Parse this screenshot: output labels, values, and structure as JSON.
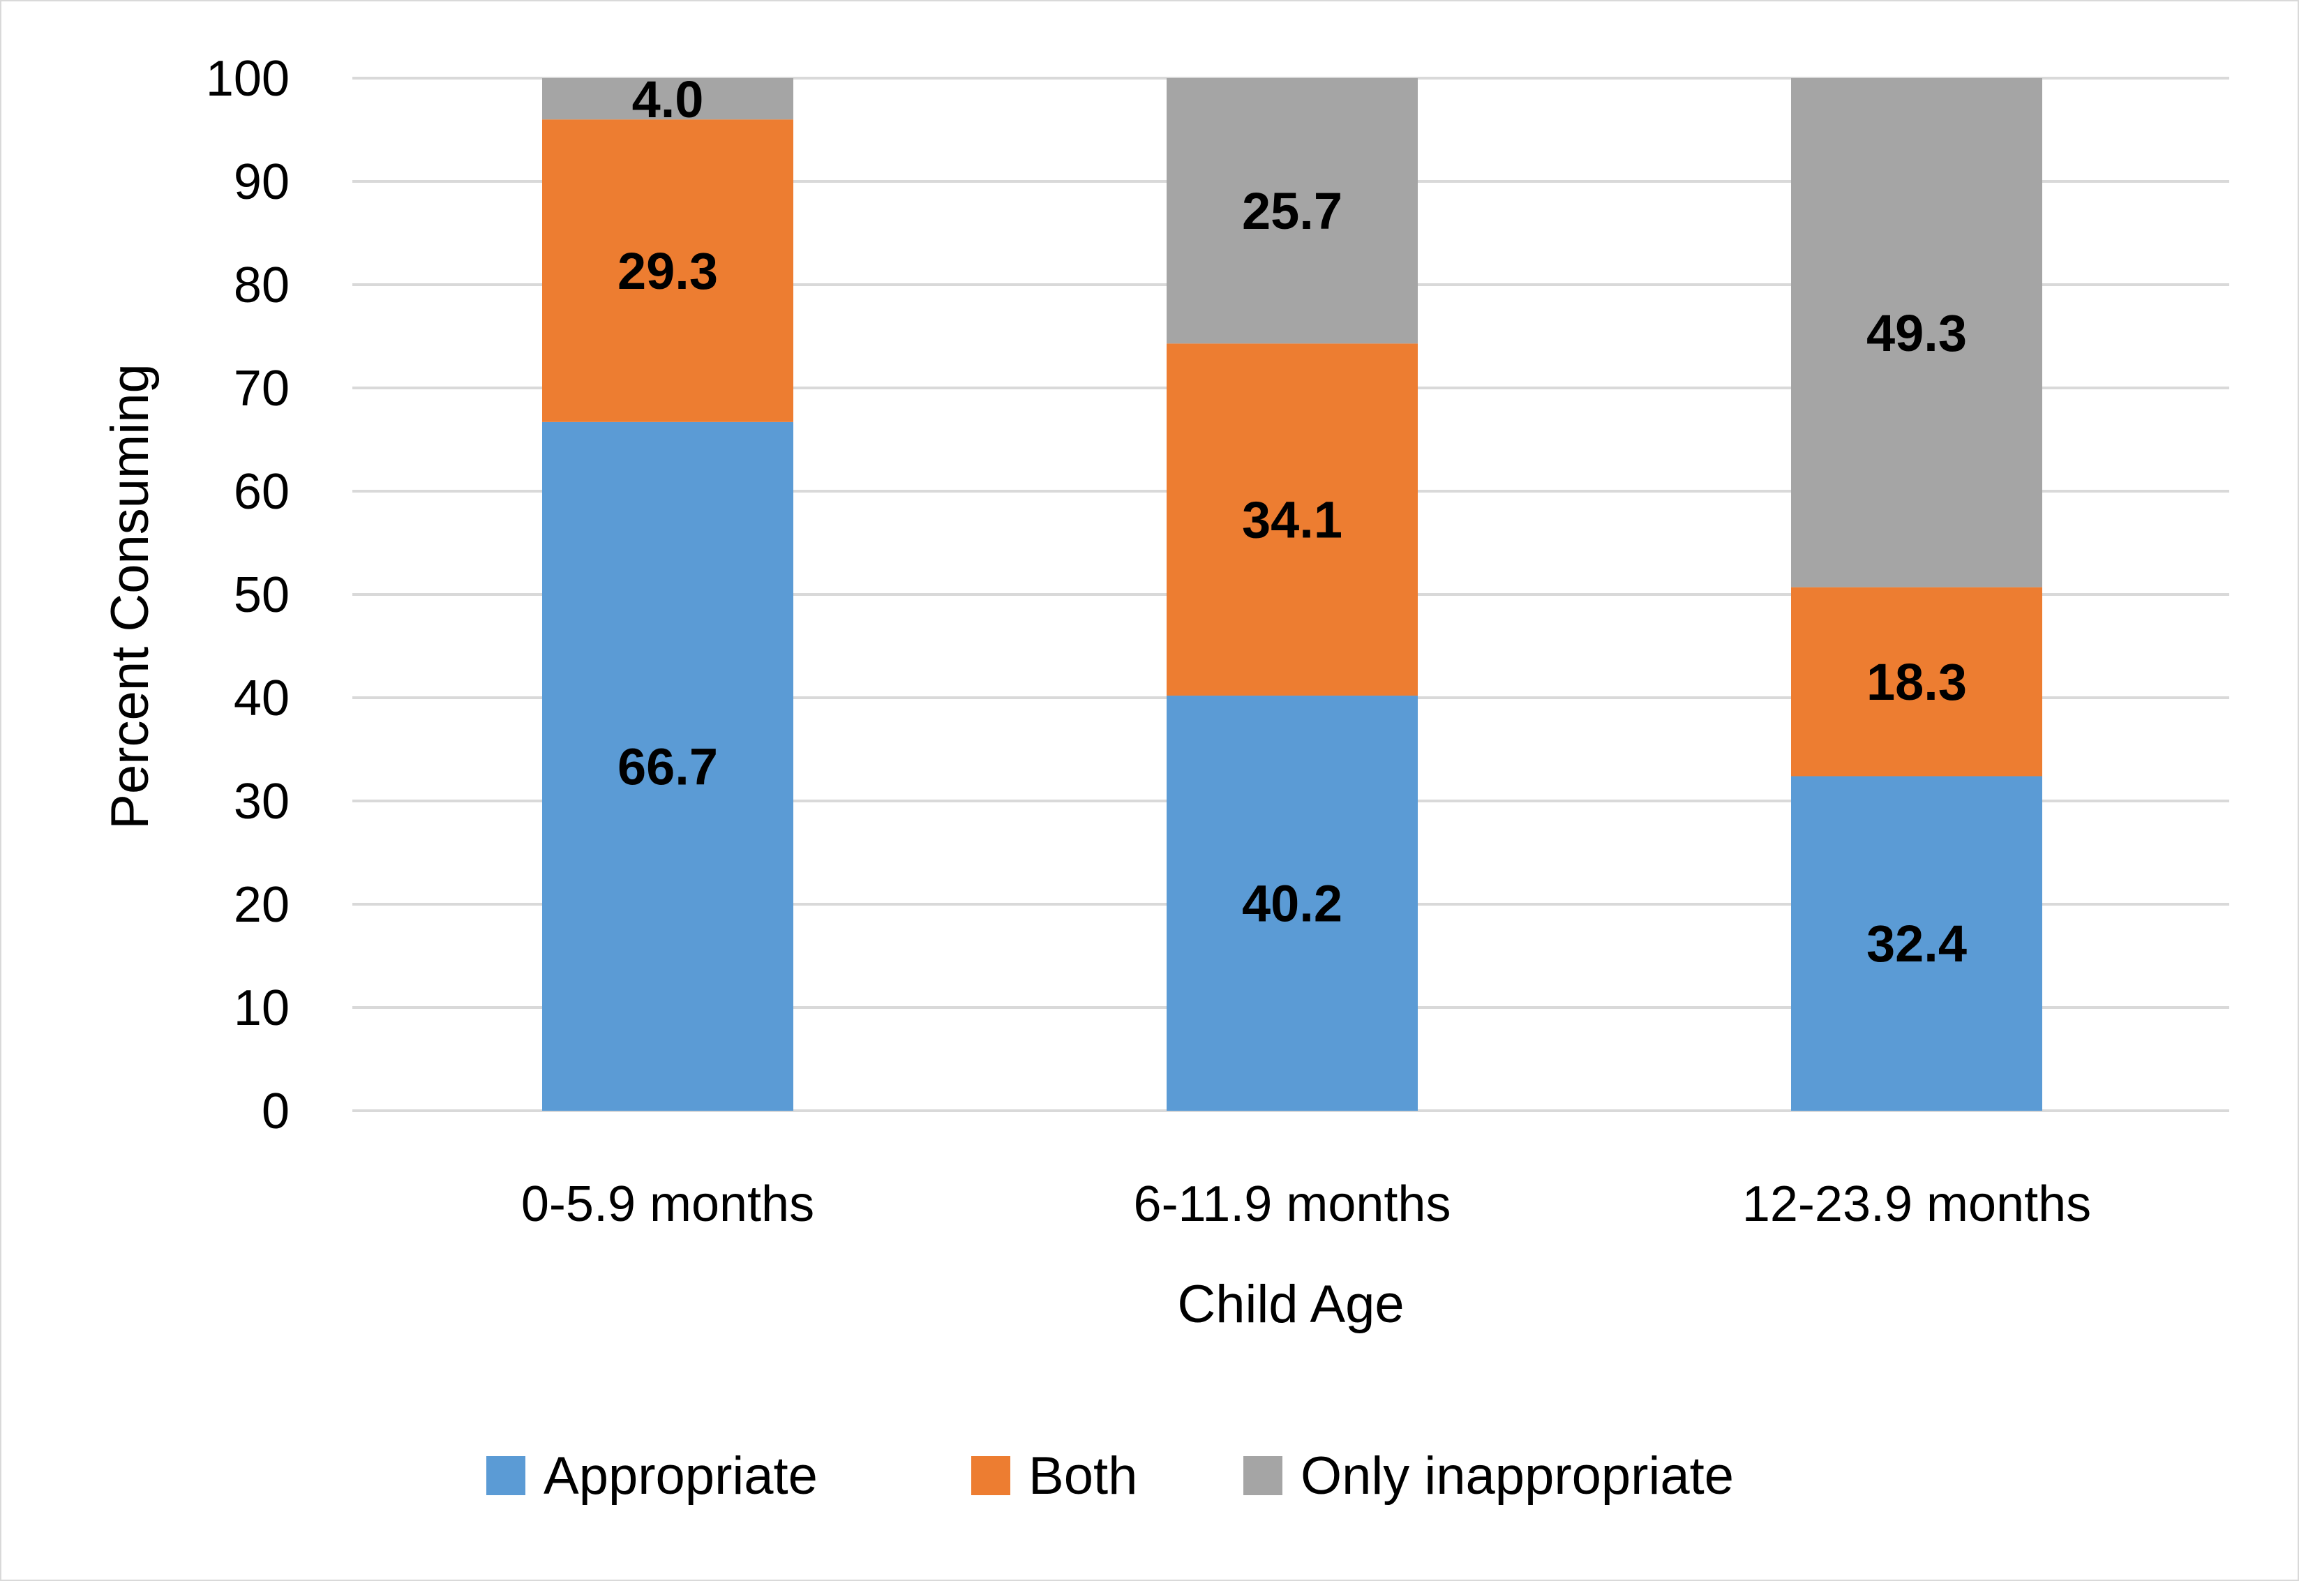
{
  "chart_data": {
    "type": "bar",
    "stacked": true,
    "title": "",
    "xlabel": "Child Age",
    "ylabel": "Percent Consuming",
    "ylim": [
      0,
      100
    ],
    "yticks": [
      "0",
      "10",
      "20",
      "30",
      "40",
      "50",
      "60",
      "70",
      "80",
      "90",
      "100"
    ],
    "grid": true,
    "legend_position": "bottom",
    "categories": [
      "0-5.9 months",
      "6-11.9 months",
      "12-23.9 months"
    ],
    "series": [
      {
        "name": "Appropriate",
        "color": "#5b9bd5",
        "values": [
          66.7,
          40.2,
          32.4
        ],
        "labels": [
          "66.7",
          "40.2",
          "32.4"
        ]
      },
      {
        "name": "Both",
        "color": "#ed7d31",
        "values": [
          29.3,
          34.1,
          18.3
        ],
        "labels": [
          "29.3",
          "34.1",
          "18.3"
        ]
      },
      {
        "name": "Only inappropriate",
        "color": "#a5a5a5",
        "values": [
          4.0,
          25.7,
          49.3
        ],
        "labels": [
          "4.0",
          "25.7",
          "49.3"
        ]
      }
    ]
  }
}
